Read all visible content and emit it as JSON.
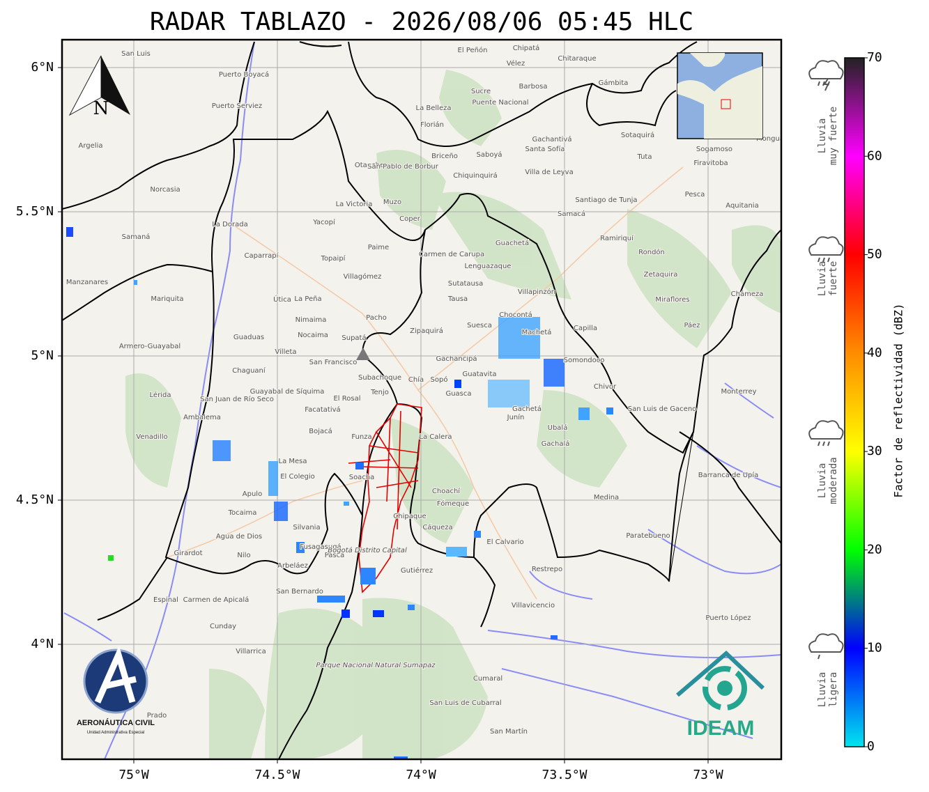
{
  "title": "RADAR TABLAZO - 2026/08/06 05:45 HLC",
  "lat_ticks": [
    {
      "value": 6,
      "label": "6°N"
    },
    {
      "value": 5.5,
      "label": "5.5°N"
    },
    {
      "value": 5,
      "label": "5°N"
    },
    {
      "value": 4.5,
      "label": "4.5°N"
    },
    {
      "value": 4,
      "label": "4°N"
    }
  ],
  "lon_ticks": [
    {
      "value": -75,
      "label": "75°W"
    },
    {
      "value": -74.5,
      "label": "74.5°W"
    },
    {
      "value": -74,
      "label": "74°W"
    },
    {
      "value": -73.5,
      "label": "73.5°W"
    },
    {
      "value": -73,
      "label": "73°W"
    }
  ],
  "compass": "N",
  "colorbar": {
    "label": "Factor de reflectividad (dBZ)",
    "lim": [
      0,
      70
    ],
    "ticks": [
      0,
      10,
      20,
      30,
      40,
      50,
      60,
      70
    ],
    "colors": [
      "#00e5ee",
      "#0000ff",
      "#00ff00",
      "#ffff00",
      "#ff8c00",
      "#ff0000",
      "#ff00ff",
      "#222222"
    ]
  },
  "legend": [
    {
      "line1": "Lluvia",
      "line2": "muy fuerte"
    },
    {
      "line1": "Lluvia",
      "line2": "fuerte"
    },
    {
      "line1": "Lluvia",
      "line2": "moderada"
    },
    {
      "line1": "Lluvia",
      "line2": "ligera"
    }
  ],
  "logos": {
    "aero": "AERONÁUTICA CIVIL",
    "aero_sub": "Unidad Administrativa Especial",
    "ideam": "IDEAM"
  },
  "places": [
    "San Luis",
    "Puerto Boyacá",
    "Puerto Serviez",
    "Argelia",
    "Norcasia",
    "La Dorada",
    "Samaná",
    "Manzanares",
    "Mariquita",
    "Caparrapí",
    "Yacopí",
    "La Victoria",
    "Muzo",
    "Otanche",
    "Chiquinquirá",
    "Villa de Leyva",
    "Santiago de Tunja",
    "Sogamoso",
    "Puente Nacional",
    "Barbosa",
    "Sucre",
    "Lenguazaque",
    "Pacho",
    "La Peña",
    "Guaduas",
    "Villeta",
    "Zipaquirá",
    "Supatá",
    "Suesca",
    "Chocontá",
    "Gachancipá",
    "Guatavita",
    "Guasca",
    "Gachetá",
    "Junín",
    "Ubalá",
    "Gachalá",
    "Medina",
    "Paratebueno",
    "Restrepo",
    "Villavicencio",
    "El Calvario",
    "Chipaque",
    "Choachí",
    "Fómeque",
    "Cáqueza",
    "Gutiérrez",
    "La Calera",
    "Soacha",
    "Facatativá",
    "La Mesa",
    "El Colegio",
    "Apulo",
    "Tocaima",
    "Agua de Dios",
    "Girardot",
    "Nilo",
    "Fusagasugá",
    "Pasca",
    "Silvania",
    "Arbeláez",
    "San Bernardo",
    "Carmen de Apicalá",
    "Espinal",
    "Cunday",
    "Villarrica",
    "Prado",
    "Lérida",
    "Venadillo",
    "Ambalema",
    "Armero-Guayabal",
    "Chaguaní",
    "Guayabal de Síquima",
    "San Juan de Río Seco",
    "El Rosal",
    "Subachoque",
    "Tenjo",
    "Chía",
    "Sopó",
    "Bogotá Distrito Capital",
    "Parque Nacional Natural Sumapaz",
    "San Luis de Cubarral",
    "Puerto López",
    "Cumaral",
    "San Martín",
    "Barranca de Upía",
    "Monterrey",
    "San Luis de Gaceno",
    "Chámeza",
    "Rondón",
    "Zetaquira",
    "Miraflores",
    "Pesca",
    "Ramiriquí",
    "Samacá",
    "Aquitania",
    "Firavitoba",
    "Tuta",
    "Sotaquirá",
    "Mongua",
    "Chipatá",
    "El Peñón",
    "Vélez",
    "Chitaraque",
    "Gámbita",
    "La Belleza",
    "Florián",
    "Briceño",
    "Saboyá",
    "Gachantivá",
    "Santa Sofía",
    "San Pablo de Borbur",
    "Coper",
    "Carmen de Carupa",
    "Sutatausa",
    "Tausa",
    "Guachetá",
    "Villapinzón",
    "Machetá",
    "Somondoco",
    "Chivor",
    "Capilla",
    "Páez",
    "Nocaima",
    "Nimaima",
    "Útica",
    "Topaipí",
    "Villagómez",
    "Paime",
    "Bojacá",
    "San Francisco",
    "Funza"
  ]
}
